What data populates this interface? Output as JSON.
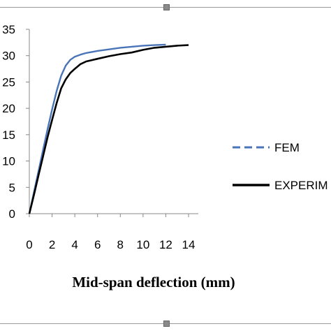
{
  "chart_data": {
    "type": "line",
    "title": "",
    "xlabel": "Mid-span deflection (mm)",
    "ylabel": "",
    "xlim": [
      0,
      14
    ],
    "ylim": [
      0,
      35
    ],
    "x_ticks": [
      0,
      2,
      4,
      6,
      8,
      10,
      12,
      14
    ],
    "y_ticks": [
      0,
      5,
      10,
      15,
      20,
      25,
      30,
      35
    ],
    "grid": false,
    "legend": "right",
    "series": [
      {
        "name": "FEM",
        "color": "#4a74b8",
        "style": "dashed-legend",
        "x": [
          0,
          0.4,
          0.8,
          1.2,
          1.6,
          2.0,
          2.4,
          2.8,
          3.2,
          3.6,
          4.0,
          4.5,
          5.0,
          5.5,
          6,
          7,
          8,
          9,
          10,
          11,
          12
        ],
        "y": [
          0,
          4.0,
          8.0,
          12.0,
          16.0,
          19.8,
          23.3,
          26.2,
          28.1,
          29.2,
          29.8,
          30.2,
          30.5,
          30.7,
          30.9,
          31.2,
          31.5,
          31.7,
          31.9,
          32.0,
          32.1
        ]
      },
      {
        "name": "EXPERIM",
        "color": "#000000",
        "style": "solid",
        "x": [
          0,
          0.4,
          0.8,
          1.2,
          1.6,
          2.0,
          2.4,
          2.8,
          3.2,
          3.6,
          4.0,
          4.5,
          5.0,
          6,
          7,
          8,
          9,
          10,
          11,
          12,
          13,
          14
        ],
        "y": [
          0,
          3.5,
          7.2,
          10.8,
          14.5,
          17.8,
          21.0,
          23.8,
          25.5,
          26.7,
          27.5,
          28.4,
          28.9,
          29.4,
          29.9,
          30.3,
          30.6,
          31.1,
          31.5,
          31.7,
          31.9,
          32.0
        ]
      }
    ]
  }
}
